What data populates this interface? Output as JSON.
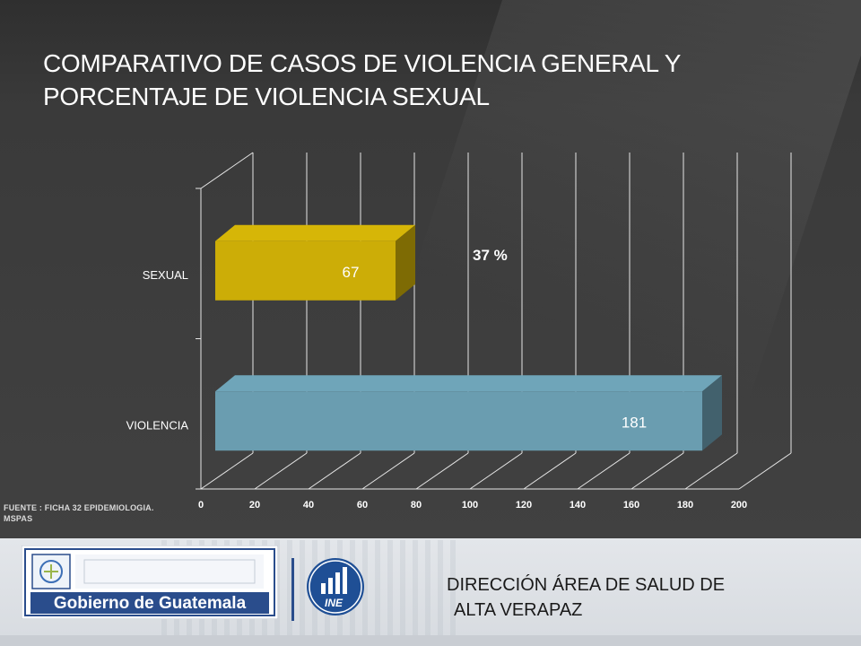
{
  "slide": {
    "title_line1": "COMPARATIVO  DE CASOS DE VIOLENCIA GENERAL Y",
    "title_line2": "PORCENTAJE DE VIOLENCIA SEXUAL",
    "source_line1": "FUENTE : FICHA 32 EPIDEMIOLOGIA.",
    "source_line2": "MSPAS",
    "footer_line1": "DIRECCIÓN ÁREA DE SALUD DE",
    "footer_line2": "ALTA VERAPAZ",
    "logo_text": "Gobierno de Guatemala",
    "ine_text": "INE"
  },
  "chart_data": {
    "type": "bar",
    "orientation": "horizontal",
    "style": "3d",
    "categories": [
      "SEXUAL",
      "VIOLENCIA"
    ],
    "values": [
      67,
      181
    ],
    "colors": [
      "#ccad07",
      "#6a9db0"
    ],
    "annotation": "37 %",
    "xlim": [
      0,
      200
    ],
    "xticks": [
      "0",
      "20",
      "40",
      "60",
      "80",
      "100",
      "120",
      "140",
      "160",
      "180",
      "200"
    ],
    "grid": true
  }
}
